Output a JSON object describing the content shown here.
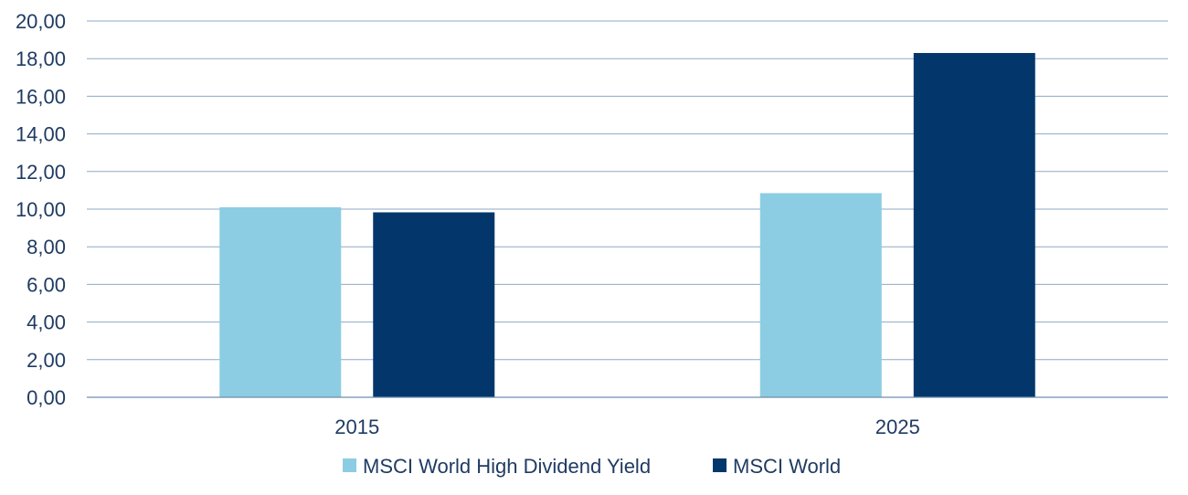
{
  "chart_data": {
    "type": "bar",
    "title": "",
    "xlabel": "",
    "ylabel": "",
    "categories": [
      "2015",
      "2025"
    ],
    "series": [
      {
        "name": "MSCI World High Dividend Yield",
        "color": "#8ccde3",
        "values": [
          10.1,
          10.85
        ]
      },
      {
        "name": "MSCI World",
        "color": "#03376b",
        "values": [
          9.83,
          18.3
        ]
      }
    ],
    "ylim": [
      0,
      20
    ],
    "yticks": [
      "0,00",
      "2,00",
      "4,00",
      "6,00",
      "8,00",
      "10,00",
      "12,00",
      "14,00",
      "16,00",
      "18,00",
      "20,00"
    ],
    "grid": true,
    "legend_position": "bottom"
  }
}
